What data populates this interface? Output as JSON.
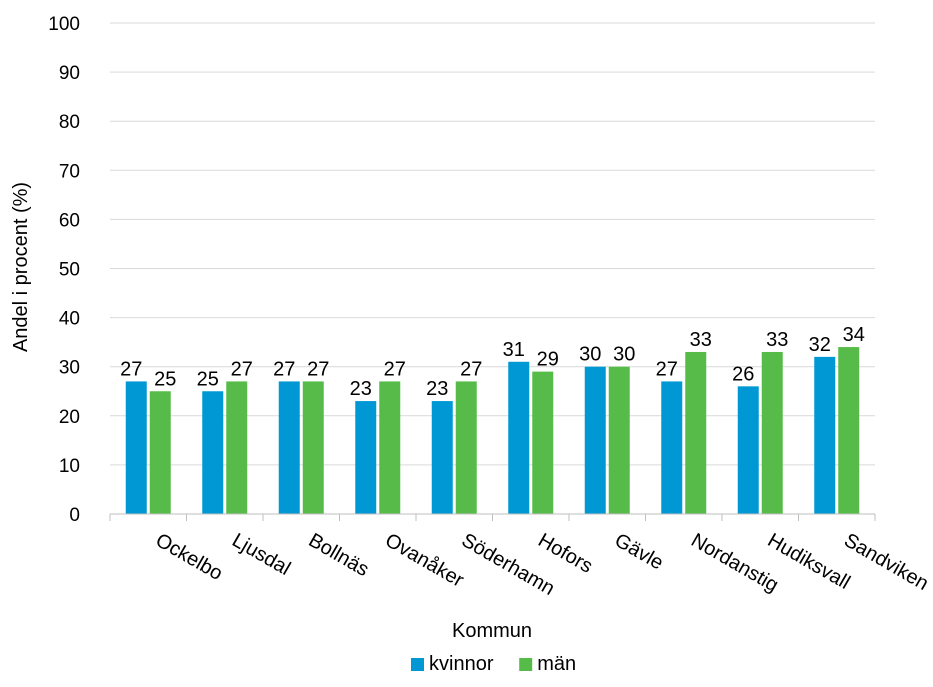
{
  "chart_data": {
    "type": "bar",
    "title": "",
    "xlabel": "Kommun",
    "ylabel": "Andel i procent (%)",
    "ylim": [
      0,
      100
    ],
    "yticks": [
      0,
      10,
      20,
      30,
      40,
      50,
      60,
      70,
      80,
      90,
      100
    ],
    "grid": true,
    "legend_position": "bottom",
    "categories": [
      "Ockelbo",
      "Ljusdal",
      "Bollnäs",
      "Ovanåker",
      "Söderhamn",
      "Hofors",
      "Gävle",
      "Nordanstig",
      "Hudiksvall",
      "Sandviken"
    ],
    "series": [
      {
        "name": "kvinnor",
        "color": "#0098d4",
        "values": [
          27,
          25,
          27,
          23,
          23,
          31,
          30,
          27,
          26,
          32
        ]
      },
      {
        "name": "män",
        "color": "#57bb4a",
        "values": [
          25,
          27,
          27,
          27,
          27,
          29,
          30,
          33,
          33,
          34
        ]
      }
    ]
  }
}
